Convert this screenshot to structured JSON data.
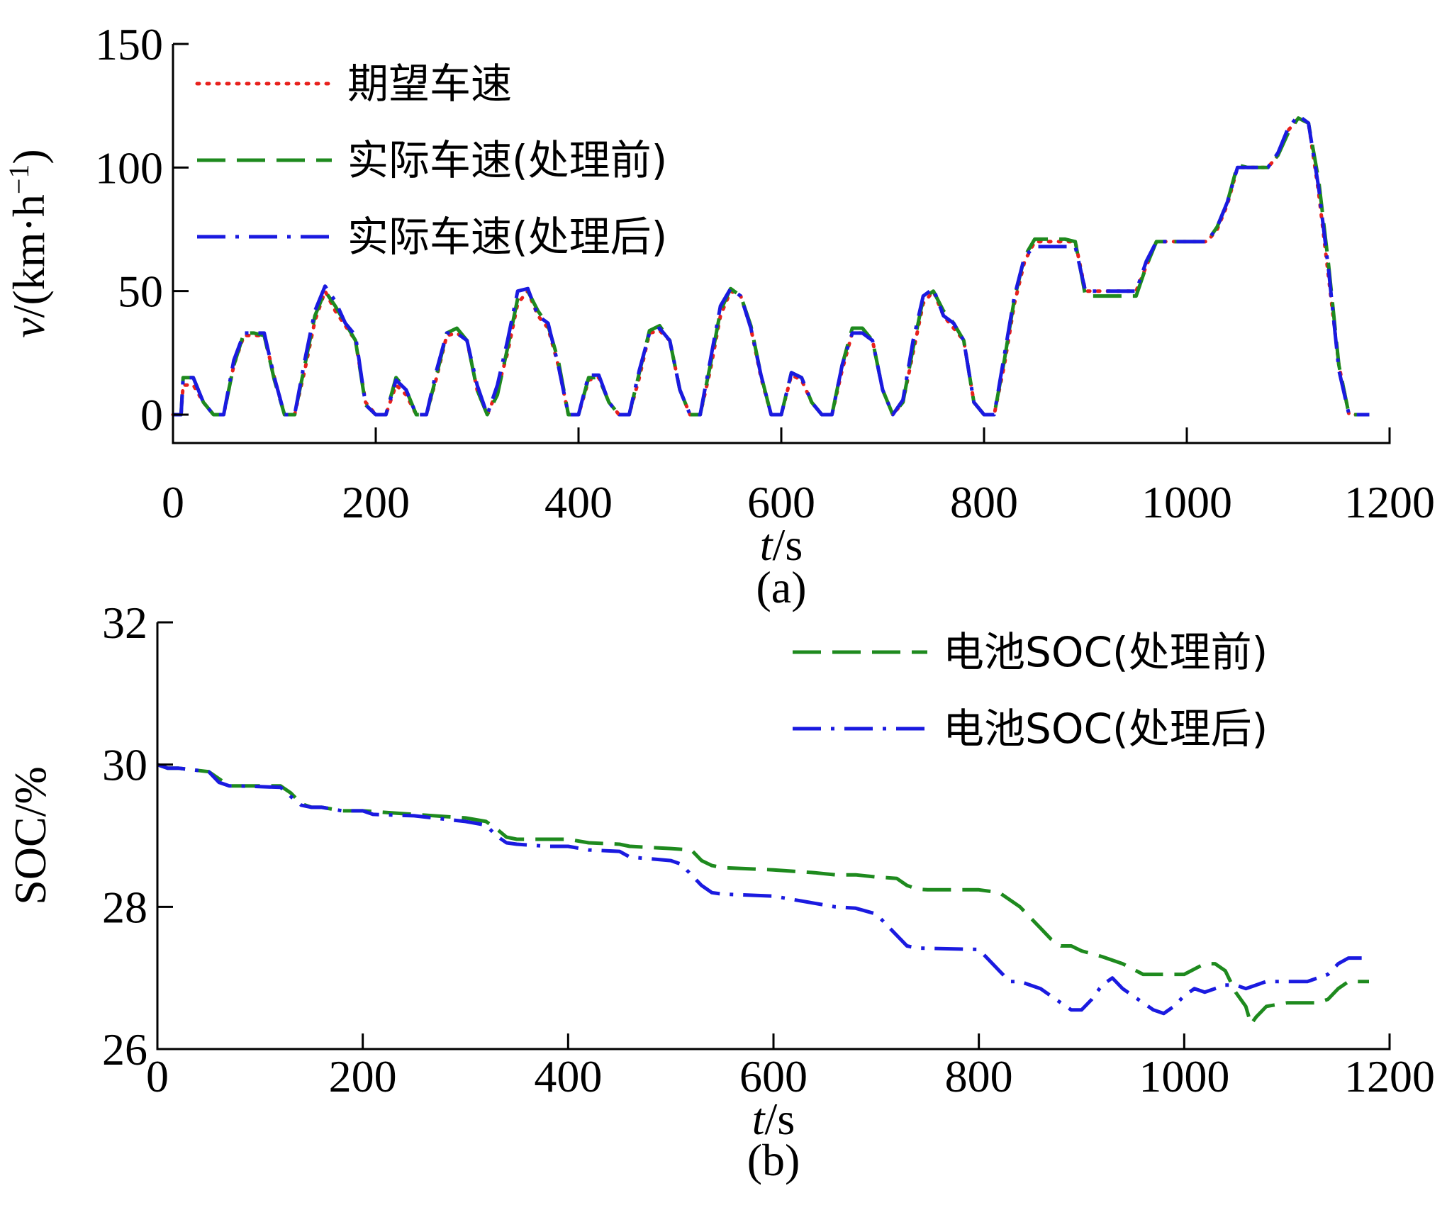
{
  "chart_data": [
    {
      "panel": "(a)",
      "type": "line",
      "xlabel_italic": "t",
      "xlabel_unit": "/s",
      "ylabel_italic": "v",
      "ylabel_unit": "/(km·h",
      "ylabel_sup": "−1",
      "ylabel_close": ")",
      "xlim": [
        0,
        1200
      ],
      "ylim": [
        0,
        150
      ],
      "xticks": [
        0,
        200,
        400,
        600,
        800,
        1000,
        1200
      ],
      "yticks": [
        0,
        50,
        100,
        150
      ],
      "legend_position": "top-left",
      "series": [
        {
          "name": "期望车速",
          "color": "#e8201c",
          "dash": "dotted",
          "x": [
            0,
            8,
            10,
            20,
            30,
            40,
            50,
            60,
            70,
            80,
            90,
            100,
            110,
            120,
            130,
            140,
            150,
            160,
            170,
            180,
            190,
            200,
            210,
            220,
            230,
            240,
            250,
            260,
            270,
            280,
            290,
            300,
            310,
            320,
            330,
            340,
            350,
            360,
            370,
            380,
            390,
            400,
            410,
            420,
            430,
            440,
            450,
            460,
            470,
            480,
            490,
            500,
            510,
            520,
            530,
            540,
            550,
            560,
            570,
            580,
            590,
            600,
            610,
            620,
            630,
            640,
            650,
            660,
            670,
            680,
            690,
            700,
            710,
            720,
            730,
            740,
            750,
            760,
            770,
            780,
            790,
            800,
            810,
            820,
            830,
            840,
            850,
            860,
            870,
            880,
            890,
            900,
            910,
            920,
            930,
            940,
            950,
            960,
            970,
            980,
            990,
            1000,
            1010,
            1020,
            1030,
            1040,
            1050,
            1060,
            1070,
            1080,
            1090,
            1100,
            1110,
            1120,
            1130,
            1140,
            1150,
            1160,
            1170,
            1180
          ],
          "y": [
            0,
            0,
            12,
            12,
            5,
            0,
            0,
            20,
            32,
            32,
            32,
            15,
            0,
            0,
            18,
            38,
            50,
            42,
            36,
            30,
            5,
            0,
            0,
            12,
            8,
            0,
            0,
            15,
            32,
            33,
            30,
            10,
            0,
            10,
            25,
            45,
            50,
            40,
            35,
            20,
            0,
            0,
            14,
            15,
            5,
            0,
            0,
            15,
            33,
            34,
            30,
            10,
            0,
            0,
            18,
            40,
            50,
            48,
            35,
            15,
            0,
            0,
            16,
            14,
            5,
            0,
            0,
            18,
            33,
            33,
            30,
            10,
            0,
            5,
            25,
            45,
            50,
            40,
            35,
            30,
            5,
            0,
            0,
            20,
            45,
            62,
            70,
            70,
            70,
            70,
            70,
            50,
            50,
            50,
            50,
            50,
            50,
            60,
            70,
            70,
            70,
            70,
            70,
            70,
            75,
            85,
            100,
            100,
            100,
            100,
            105,
            115,
            120,
            118,
            90,
            55,
            20,
            0,
            0,
            0
          ]
        },
        {
          "name": "实际车速(处理前)",
          "color": "#1e8a1e",
          "dash": "dashed",
          "x": [
            0,
            8,
            10,
            20,
            30,
            40,
            50,
            60,
            70,
            80,
            90,
            100,
            110,
            120,
            130,
            140,
            150,
            160,
            170,
            180,
            190,
            200,
            210,
            220,
            230,
            240,
            250,
            260,
            270,
            280,
            290,
            300,
            310,
            320,
            330,
            340,
            350,
            360,
            370,
            380,
            390,
            400,
            410,
            420,
            430,
            440,
            450,
            460,
            470,
            480,
            490,
            500,
            510,
            520,
            530,
            540,
            550,
            560,
            570,
            580,
            590,
            600,
            610,
            620,
            630,
            640,
            650,
            660,
            670,
            680,
            690,
            700,
            710,
            720,
            730,
            740,
            750,
            760,
            770,
            780,
            790,
            800,
            810,
            820,
            830,
            840,
            850,
            860,
            870,
            880,
            890,
            900,
            910,
            920,
            930,
            940,
            950,
            960,
            970,
            980,
            990,
            1000,
            1010,
            1020,
            1030,
            1040,
            1050,
            1060,
            1070,
            1080,
            1090,
            1100,
            1110,
            1120,
            1130,
            1140,
            1150,
            1160,
            1170,
            1180
          ],
          "y": [
            0,
            0,
            15,
            15,
            5,
            0,
            0,
            20,
            33,
            33,
            32,
            14,
            0,
            0,
            20,
            40,
            50,
            44,
            37,
            30,
            4,
            0,
            0,
            15,
            10,
            0,
            0,
            16,
            33,
            35,
            30,
            10,
            0,
            8,
            27,
            47,
            50,
            42,
            36,
            22,
            0,
            0,
            15,
            15,
            5,
            0,
            0,
            17,
            34,
            36,
            30,
            10,
            0,
            0,
            20,
            42,
            51,
            48,
            36,
            16,
            0,
            0,
            17,
            15,
            5,
            0,
            0,
            20,
            35,
            35,
            30,
            10,
            0,
            5,
            27,
            47,
            50,
            42,
            37,
            30,
            5,
            0,
            0,
            22,
            47,
            64,
            71,
            71,
            71,
            71,
            70,
            48,
            48,
            48,
            48,
            48,
            48,
            60,
            70,
            70,
            70,
            70,
            70,
            70,
            76,
            86,
            101,
            100,
            100,
            100,
            105,
            114,
            120,
            118,
            95,
            60,
            20,
            0,
            0,
            0
          ]
        },
        {
          "name": "实际车速(处理后)",
          "color": "#1a1ae0",
          "dash": "dashdot",
          "x": [
            0,
            8,
            10,
            20,
            30,
            40,
            50,
            60,
            70,
            80,
            90,
            100,
            110,
            120,
            130,
            140,
            150,
            160,
            170,
            180,
            190,
            200,
            210,
            220,
            230,
            240,
            250,
            260,
            270,
            280,
            290,
            300,
            310,
            320,
            330,
            340,
            350,
            360,
            370,
            380,
            390,
            400,
            410,
            420,
            430,
            440,
            450,
            460,
            470,
            480,
            490,
            500,
            510,
            520,
            530,
            540,
            550,
            560,
            570,
            580,
            590,
            600,
            610,
            620,
            630,
            640,
            650,
            660,
            670,
            680,
            690,
            700,
            710,
            720,
            730,
            740,
            750,
            760,
            770,
            780,
            790,
            800,
            810,
            820,
            830,
            840,
            850,
            860,
            870,
            880,
            890,
            900,
            910,
            920,
            930,
            940,
            950,
            960,
            970,
            980,
            990,
            1000,
            1010,
            1020,
            1030,
            1040,
            1050,
            1060,
            1070,
            1080,
            1090,
            1100,
            1110,
            1120,
            1130,
            1140,
            1150,
            1160,
            1170,
            1180
          ],
          "y": [
            0,
            0,
            15,
            15,
            5,
            0,
            0,
            22,
            33,
            33,
            33,
            15,
            0,
            0,
            22,
            42,
            52,
            46,
            37,
            32,
            4,
            0,
            0,
            14,
            10,
            0,
            0,
            18,
            33,
            33,
            30,
            12,
            0,
            12,
            30,
            50,
            51,
            40,
            37,
            20,
            0,
            0,
            16,
            16,
            5,
            0,
            0,
            18,
            33,
            35,
            30,
            10,
            0,
            0,
            22,
            44,
            51,
            48,
            35,
            16,
            0,
            0,
            17,
            15,
            5,
            0,
            0,
            20,
            33,
            33,
            30,
            10,
            0,
            6,
            30,
            48,
            51,
            40,
            37,
            30,
            5,
            0,
            0,
            24,
            48,
            64,
            68,
            68,
            68,
            68,
            68,
            50,
            50,
            50,
            50,
            50,
            50,
            62,
            70,
            70,
            70,
            70,
            70,
            70,
            76,
            86,
            100,
            100,
            100,
            100,
            106,
            116,
            121,
            118,
            92,
            58,
            18,
            0,
            0,
            0
          ]
        }
      ]
    },
    {
      "panel": "(b)",
      "type": "line",
      "xlabel_italic": "t",
      "xlabel_unit": "/s",
      "ylabel": "SOC/%",
      "xlim": [
        0,
        1200
      ],
      "ylim": [
        26,
        32
      ],
      "xticks": [
        0,
        200,
        400,
        600,
        800,
        1000,
        1200
      ],
      "yticks": [
        26,
        28,
        30,
        32
      ],
      "legend_position": "top-right",
      "series": [
        {
          "name": "电池SOC(处理前)",
          "color": "#1e8a1e",
          "dash": "dashed",
          "x": [
            0,
            10,
            20,
            50,
            60,
            70,
            80,
            120,
            130,
            140,
            150,
            160,
            180,
            200,
            250,
            300,
            320,
            330,
            340,
            350,
            380,
            400,
            420,
            450,
            460,
            500,
            520,
            530,
            540,
            550,
            600,
            620,
            640,
            660,
            680,
            700,
            720,
            730,
            740,
            750,
            800,
            820,
            830,
            840,
            850,
            860,
            870,
            880,
            890,
            900,
            920,
            940,
            960,
            980,
            1000,
            1020,
            1030,
            1040,
            1050,
            1060,
            1065,
            1070,
            1080,
            1100,
            1120,
            1130,
            1140,
            1150,
            1160,
            1170,
            1180
          ],
          "y": [
            30,
            29.95,
            29.95,
            29.9,
            29.8,
            29.7,
            29.7,
            29.7,
            29.6,
            29.45,
            29.4,
            29.4,
            29.35,
            29.35,
            29.3,
            29.25,
            29.2,
            29.1,
            28.98,
            28.95,
            28.95,
            28.95,
            28.9,
            28.88,
            28.85,
            28.82,
            28.8,
            28.65,
            28.58,
            28.55,
            28.52,
            28.5,
            28.48,
            28.45,
            28.45,
            28.42,
            28.4,
            28.3,
            28.25,
            28.24,
            28.24,
            28.2,
            28.1,
            28.0,
            27.85,
            27.7,
            27.55,
            27.45,
            27.45,
            27.38,
            27.3,
            27.2,
            27.05,
            27.05,
            27.05,
            27.2,
            27.2,
            27.1,
            26.8,
            26.6,
            26.35,
            26.45,
            26.6,
            26.65,
            26.65,
            26.65,
            26.7,
            26.85,
            26.95,
            26.95,
            26.95
          ]
        },
        {
          "name": "电池SOC(处理后)",
          "color": "#1a1ae0",
          "dash": "dashdot",
          "x": [
            0,
            10,
            20,
            50,
            60,
            70,
            80,
            120,
            130,
            140,
            150,
            160,
            180,
            200,
            210,
            250,
            300,
            320,
            330,
            340,
            350,
            380,
            400,
            420,
            450,
            460,
            500,
            510,
            520,
            530,
            540,
            550,
            600,
            620,
            640,
            660,
            680,
            700,
            710,
            720,
            730,
            740,
            800,
            820,
            830,
            840,
            850,
            860,
            870,
            880,
            890,
            900,
            910,
            920,
            930,
            940,
            950,
            960,
            970,
            980,
            990,
            1000,
            1010,
            1020,
            1030,
            1040,
            1050,
            1060,
            1070,
            1080,
            1100,
            1120,
            1130,
            1140,
            1150,
            1160,
            1170,
            1180
          ],
          "y": [
            30,
            29.95,
            29.95,
            29.9,
            29.75,
            29.7,
            29.7,
            29.68,
            29.55,
            29.43,
            29.4,
            29.4,
            29.35,
            29.35,
            29.3,
            29.28,
            29.2,
            29.15,
            29.0,
            28.9,
            28.88,
            28.85,
            28.85,
            28.8,
            28.78,
            28.7,
            28.65,
            28.6,
            28.45,
            28.3,
            28.2,
            28.18,
            28.15,
            28.1,
            28.05,
            28.0,
            27.98,
            27.9,
            27.75,
            27.6,
            27.45,
            27.42,
            27.4,
            27.1,
            26.95,
            26.95,
            26.9,
            26.85,
            26.75,
            26.65,
            26.55,
            26.55,
            26.7,
            26.9,
            27.0,
            26.85,
            26.75,
            26.65,
            26.55,
            26.5,
            26.6,
            26.75,
            26.85,
            26.8,
            26.85,
            26.9,
            26.9,
            26.85,
            26.9,
            26.95,
            26.95,
            26.95,
            27.0,
            27.05,
            27.2,
            27.28,
            27.28,
            27.28
          ]
        }
      ]
    }
  ]
}
